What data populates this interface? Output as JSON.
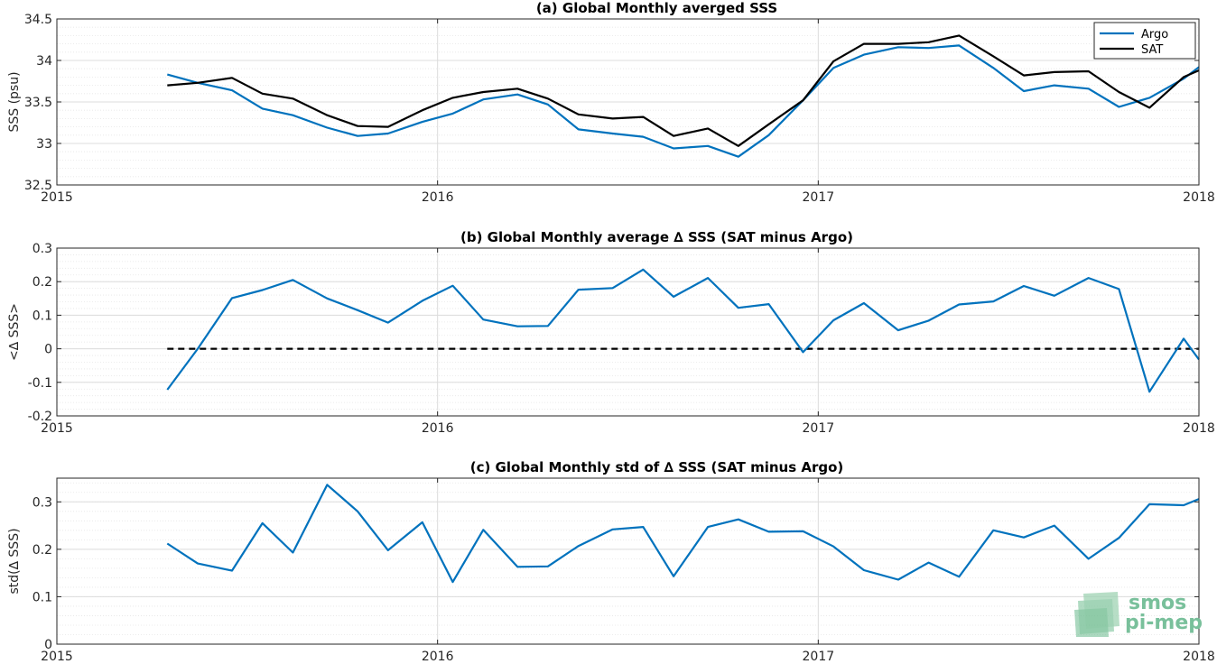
{
  "colors": {
    "argo": "#0072bd",
    "sat": "#000000",
    "zero_line": "#000000",
    "grid": "#dcdcdc",
    "axes": "#262626"
  },
  "logo": {
    "line1": "smos",
    "line2": "pi-mep"
  },
  "chart_data": [
    {
      "id": "a",
      "type": "line",
      "title": "(a) Global Monthly averged SSS",
      "ylabel": "SSS (psu)",
      "xlim": [
        2015,
        2018
      ],
      "xticks": [
        "2015",
        "2016",
        "2017",
        "2018"
      ],
      "ylim": [
        32.5,
        34.5
      ],
      "yticks": [
        "32.5",
        "33",
        "33.5",
        "34",
        "34.5"
      ],
      "grid": true,
      "legend": "top-right",
      "x": [
        2015.29,
        2015.37,
        2015.46,
        2015.54,
        2015.62,
        2015.71,
        2015.79,
        2015.87,
        2015.96,
        2016.04,
        2016.12,
        2016.21,
        2016.29,
        2016.37,
        2016.46,
        2016.54,
        2016.62,
        2016.71,
        2016.79,
        2016.87,
        2016.96,
        2017.04,
        2017.12,
        2017.21,
        2017.29,
        2017.37,
        2017.46,
        2017.54,
        2017.62,
        2017.71,
        2017.79,
        2017.87,
        2017.96,
        2018.0
      ],
      "series": [
        {
          "name": "Argo",
          "color": "#0072bd",
          "values": [
            33.83,
            33.73,
            33.64,
            33.42,
            33.34,
            33.19,
            33.09,
            33.12,
            33.26,
            33.36,
            33.53,
            33.59,
            33.47,
            33.17,
            33.12,
            33.08,
            32.94,
            32.97,
            32.84,
            33.1,
            33.52,
            33.91,
            34.07,
            34.16,
            34.15,
            34.18,
            33.91,
            33.63,
            33.7,
            33.66,
            33.44,
            33.55,
            33.78,
            33.92
          ]
        },
        {
          "name": "SAT",
          "color": "#000000",
          "values": [
            33.7,
            33.73,
            33.79,
            33.6,
            33.54,
            33.34,
            33.21,
            33.2,
            33.4,
            33.55,
            33.62,
            33.66,
            33.54,
            33.35,
            33.3,
            33.32,
            33.09,
            33.18,
            32.97,
            33.23,
            33.52,
            33.99,
            34.2,
            34.2,
            34.22,
            34.3,
            34.05,
            33.82,
            33.86,
            33.87,
            33.62,
            33.43,
            33.8,
            33.88
          ]
        }
      ]
    },
    {
      "id": "b",
      "type": "line",
      "title": "(b) Global Monthly average ∆ SSS (SAT minus Argo)",
      "ylabel": "<∆ SSS>",
      "xlim": [
        2015,
        2018
      ],
      "xticks": [
        "2015",
        "2016",
        "2017",
        "2018"
      ],
      "ylim": [
        -0.2,
        0.3
      ],
      "yticks": [
        "-0.2",
        "-0.1",
        "0",
        "0.1",
        "0.2",
        "0.3"
      ],
      "grid": true,
      "reference_line": {
        "y": 0,
        "style": "dashed",
        "x_range": [
          2015.29,
          2018.0
        ]
      },
      "x": [
        2015.29,
        2015.37,
        2015.46,
        2015.54,
        2015.62,
        2015.71,
        2015.79,
        2015.87,
        2015.96,
        2016.04,
        2016.12,
        2016.21,
        2016.29,
        2016.37,
        2016.46,
        2016.54,
        2016.62,
        2016.71,
        2016.79,
        2016.87,
        2016.96,
        2017.04,
        2017.12,
        2017.21,
        2017.29,
        2017.37,
        2017.46,
        2017.54,
        2017.62,
        2017.71,
        2017.79,
        2017.87,
        2017.96,
        2018.0
      ],
      "series": [
        {
          "color": "#0072bd",
          "values": [
            -0.122,
            0.0,
            0.151,
            0.175,
            0.205,
            0.15,
            0.115,
            0.078,
            0.143,
            0.188,
            0.087,
            0.067,
            0.068,
            0.176,
            0.181,
            0.236,
            0.155,
            0.211,
            0.122,
            0.133,
            -0.01,
            0.085,
            0.136,
            0.055,
            0.084,
            0.132,
            0.141,
            0.187,
            0.158,
            0.211,
            0.178,
            -0.128,
            0.03,
            -0.032
          ]
        }
      ]
    },
    {
      "id": "c",
      "type": "line",
      "title": "(c) Global Monthly std of ∆ SSS (SAT minus Argo)",
      "ylabel": "std(∆ SSS)",
      "xlim": [
        2015,
        2018
      ],
      "xticks": [
        "2015",
        "2016",
        "2017",
        "2018"
      ],
      "ylim": [
        0,
        0.35
      ],
      "yticks": [
        "0",
        "0.1",
        "0.2",
        "0.3"
      ],
      "grid": true,
      "x": [
        2015.29,
        2015.37,
        2015.46,
        2015.54,
        2015.62,
        2015.71,
        2015.79,
        2015.87,
        2015.96,
        2016.04,
        2016.12,
        2016.21,
        2016.29,
        2016.37,
        2016.46,
        2016.54,
        2016.62,
        2016.71,
        2016.79,
        2016.87,
        2016.96,
        2017.04,
        2017.12,
        2017.21,
        2017.29,
        2017.37,
        2017.46,
        2017.54,
        2017.62,
        2017.71,
        2017.79,
        2017.87,
        2017.96,
        2018.0
      ],
      "series": [
        {
          "color": "#0072bd",
          "values": [
            0.212,
            0.17,
            0.155,
            0.255,
            0.193,
            0.336,
            0.28,
            0.198,
            0.257,
            0.131,
            0.241,
            0.163,
            0.164,
            0.207,
            0.242,
            0.247,
            0.143,
            0.247,
            0.263,
            0.237,
            0.238,
            0.206,
            0.156,
            0.136,
            0.172,
            0.142,
            0.24,
            0.225,
            0.25,
            0.18,
            0.224,
            0.295,
            0.293,
            0.306
          ]
        }
      ]
    }
  ]
}
